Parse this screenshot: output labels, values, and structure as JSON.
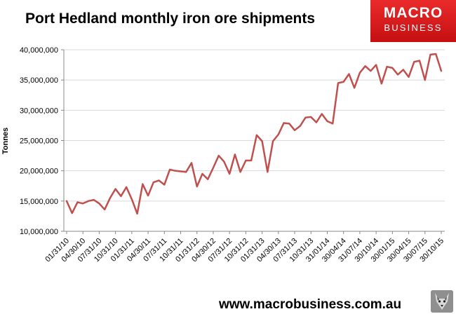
{
  "chart_data": {
    "type": "line",
    "title": "Port Hedland monthly iron ore shipments",
    "xlabel": "",
    "ylabel": "Tonnes",
    "ylim": [
      10000000,
      40000000
    ],
    "yticks": [
      10000000,
      15000000,
      20000000,
      25000000,
      30000000,
      35000000,
      40000000
    ],
    "ytick_labels": [
      "10,000,000",
      "15,000,000",
      "20,000,000",
      "25,000,000",
      "30,000,000",
      "35,000,000",
      "40,000,000"
    ],
    "grid": true,
    "xtick_labels": [
      "01/31/10",
      "04/30/10",
      "07/31/10",
      "10/31/10",
      "01/31/11",
      "04/30/11",
      "07/31/11",
      "10/31/11",
      "01/31/12",
      "04/30/12",
      "07/31/12",
      "10/31/12",
      "01/31/13",
      "04/30/13",
      "07/31/13",
      "10/31/13",
      "31/01/14",
      "30/04/14",
      "31/07/14",
      "30/10/14",
      "30/01/15",
      "30/04/15",
      "30/07/15",
      "30/10/15"
    ],
    "series": [
      {
        "name": "Port Hedland monthly iron ore shipments",
        "color": "#c0504d",
        "values": [
          15000000,
          13000000,
          14800000,
          14600000,
          15000000,
          15200000,
          14600000,
          13600000,
          15500000,
          17000000,
          15800000,
          17300000,
          15300000,
          12900000,
          17800000,
          15900000,
          18100000,
          18400000,
          17700000,
          20200000,
          20000000,
          19900000,
          19800000,
          21300000,
          17400000,
          19500000,
          18600000,
          20500000,
          22500000,
          21500000,
          19500000,
          22700000,
          19800000,
          21700000,
          21700000,
          25900000,
          24900000,
          19800000,
          24900000,
          26000000,
          27900000,
          27800000,
          26700000,
          27400000,
          28800000,
          28900000,
          28000000,
          29400000,
          28200000,
          27800000,
          34500000,
          34700000,
          36000000,
          33700000,
          36200000,
          37300000,
          36500000,
          37500000,
          34400000,
          37200000,
          37000000,
          35900000,
          36700000,
          35500000,
          38000000,
          38200000,
          35000000,
          39200000,
          39300000,
          36500000
        ]
      }
    ]
  },
  "logo": {
    "top": "MACRO",
    "bottom": "BUSINESS"
  },
  "footer": {
    "url": "www.macrobusiness.com.au"
  }
}
